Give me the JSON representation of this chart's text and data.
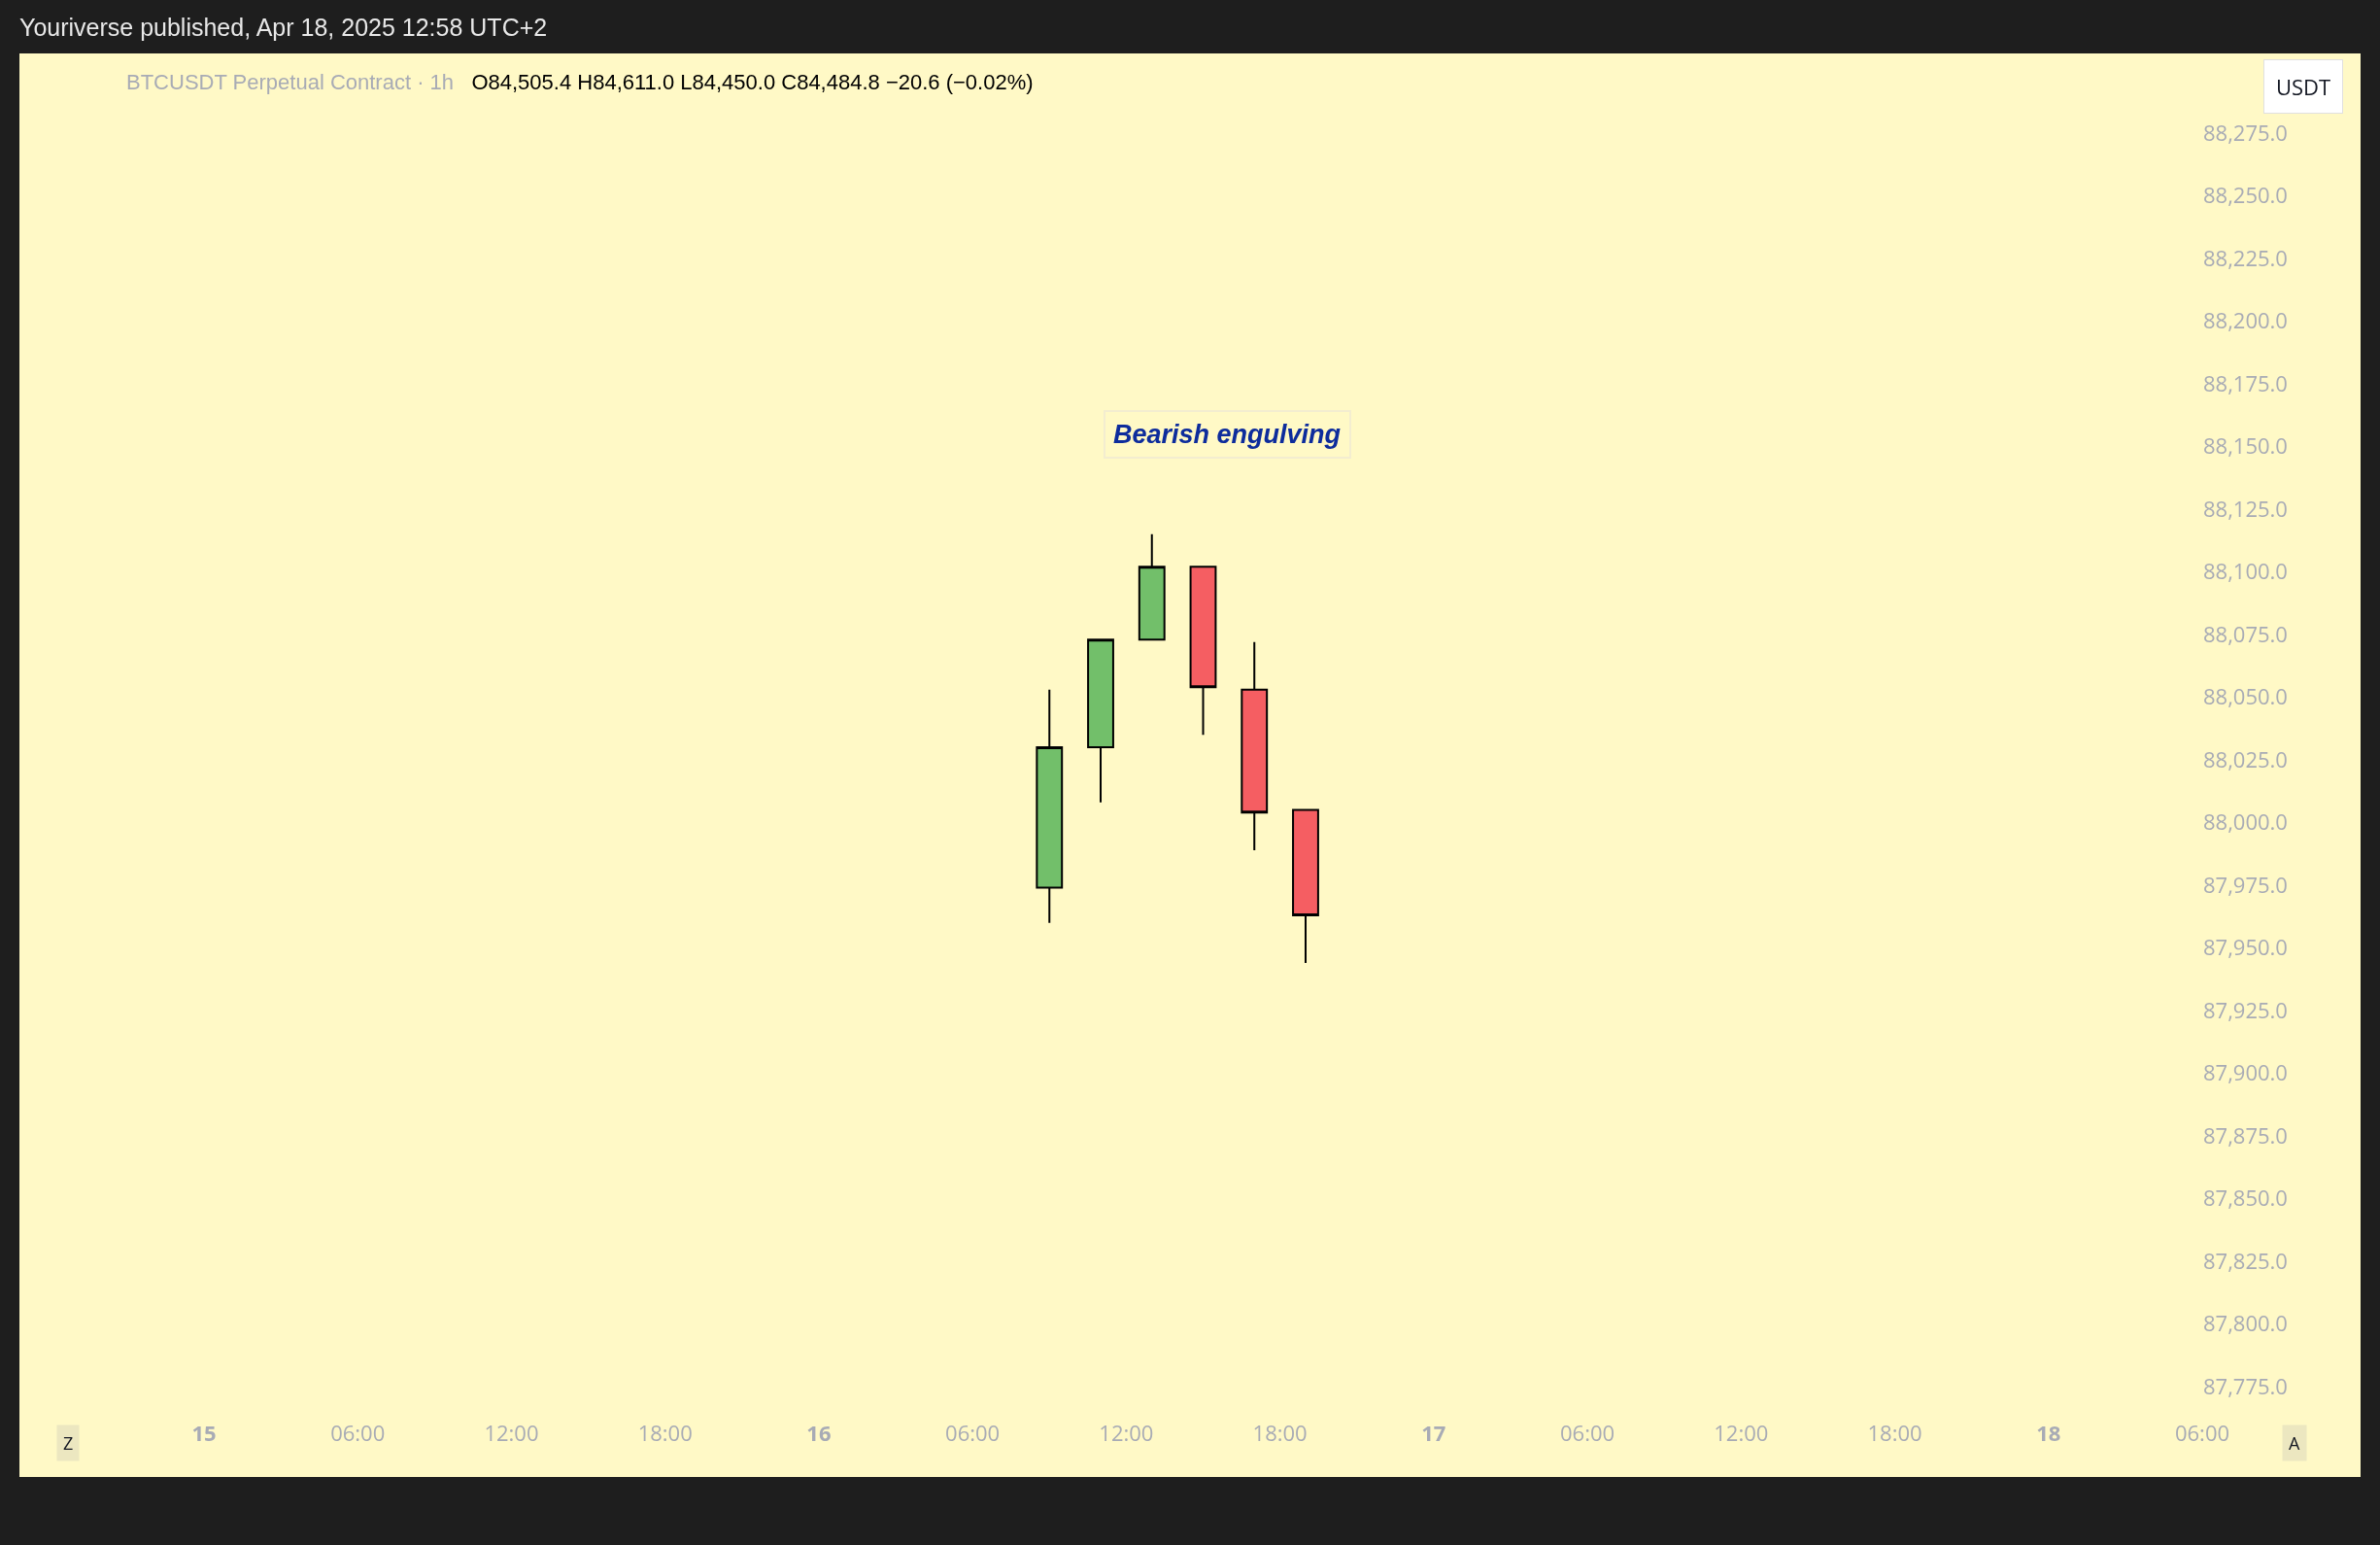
{
  "chart_data": {
    "type": "candlestick",
    "title": "BTCUSDT Perpetual Contract · 1h",
    "subtitle": "O84,505.4 H84,611.0 L84,450.0 C84,484.8 −20.6 (−0.02%)",
    "ylabel": "USDT",
    "x": [
      "2025-04-16T09:00",
      "2025-04-16T11:00",
      "2025-04-16T13:00",
      "2025-04-16T15:00",
      "2025-04-16T17:00",
      "2025-04-16T19:00"
    ],
    "ohlc": [
      [
        87974,
        88053,
        87960,
        88030
      ],
      [
        88030,
        88073,
        88008,
        88073
      ],
      [
        88073,
        88115,
        88073,
        88102
      ],
      [
        88102,
        88102,
        88035,
        88054
      ],
      [
        88053,
        88072,
        87989,
        88004
      ],
      [
        88005,
        88005,
        87944,
        87963
      ]
    ],
    "colors": [
      "#72bf6a",
      "#72bf6a",
      "#72bf6a",
      "#f55e62",
      "#f55e62",
      "#f55e62"
    ],
    "annotations": [
      "Bearish engulving",
      "Youriverse published, Apr 18, 2025 12:58 UTC+2",
      "Z",
      "A"
    ],
    "xlim": [
      "2025-04-15",
      "2025-04-18T06:00"
    ],
    "xticks": [
      {
        "value": "2025-04-15",
        "label": "15"
      },
      {
        "value": "2025-04-15T06:00",
        "label": "06:00"
      },
      {
        "value": "2025-04-15T12:00",
        "label": "12:00"
      },
      {
        "value": "2025-04-15T18:00",
        "label": "18:00"
      },
      {
        "value": "2025-04-16",
        "label": "16"
      },
      {
        "value": "2025-04-16T06:00",
        "label": "06:00"
      },
      {
        "value": "2025-04-16T12:00",
        "label": "12:00"
      },
      {
        "value": "2025-04-16T18:00",
        "label": "18:00"
      },
      {
        "value": "2025-04-17",
        "label": "17"
      },
      {
        "value": "2025-04-17T06:00",
        "label": "06:00"
      },
      {
        "value": "2025-04-17T12:00",
        "label": "12:00"
      },
      {
        "value": "2025-04-17T18:00",
        "label": "18:00"
      },
      {
        "value": "2025-04-18",
        "label": "18"
      },
      {
        "value": "2025-04-18T06:00",
        "label": "06:00"
      }
    ],
    "ylim": [
      87775,
      88275
    ],
    "yticks": [
      {
        "value": 87775,
        "label": "87,775.0"
      },
      {
        "value": 87800,
        "label": "87,800.0"
      },
      {
        "value": 87825,
        "label": "87,825.0"
      },
      {
        "value": 87850,
        "label": "87,850.0"
      },
      {
        "value": 87875,
        "label": "87,875.0"
      },
      {
        "value": 87900,
        "label": "87,900.0"
      },
      {
        "value": 87925,
        "label": "87,925.0"
      },
      {
        "value": 87950,
        "label": "87,950.0"
      },
      {
        "value": 87975,
        "label": "87,975.0"
      },
      {
        "value": 88000,
        "label": "88,000.0"
      },
      {
        "value": 88025,
        "label": "88,025.0"
      },
      {
        "value": 88050,
        "label": "88,050.0"
      },
      {
        "value": 88075,
        "label": "88,075.0"
      },
      {
        "value": 88100,
        "label": "88,100.0"
      },
      {
        "value": 88125,
        "label": "88,125.0"
      },
      {
        "value": 88150,
        "label": "88,150.0"
      },
      {
        "value": 88175,
        "label": "88,175.0"
      },
      {
        "value": 88200,
        "label": "88,200.0"
      },
      {
        "value": 88225,
        "label": "88,225.0"
      },
      {
        "value": 88250,
        "label": "88,250.0"
      },
      {
        "value": 88275,
        "label": "88,275.0"
      }
    ]
  }
}
